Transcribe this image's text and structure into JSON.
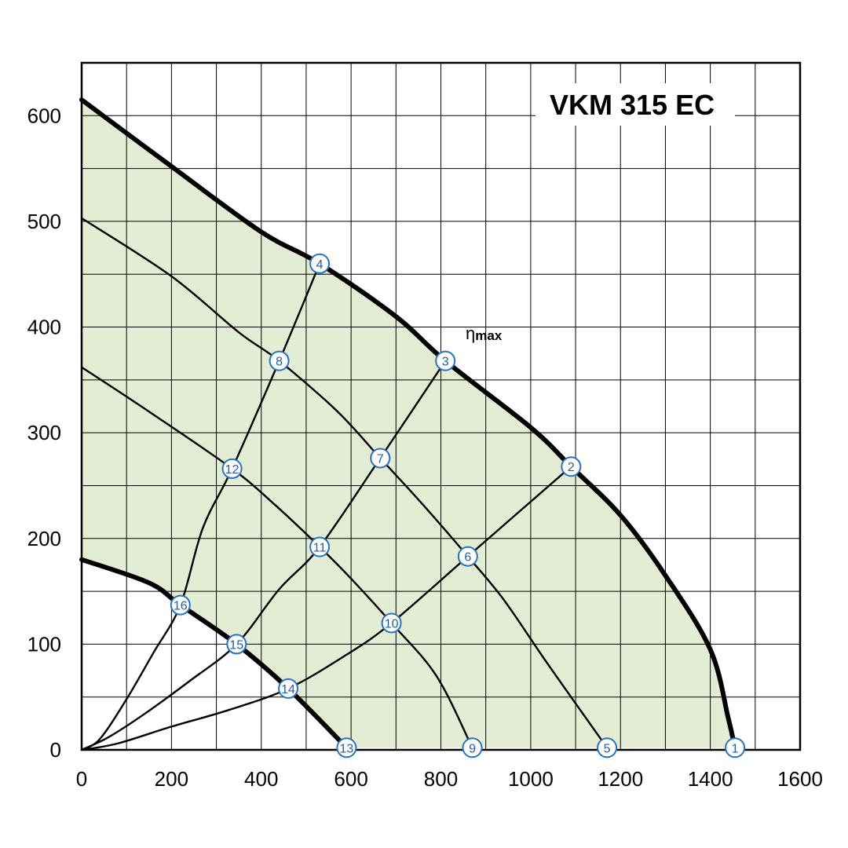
{
  "chart_data": {
    "type": "line",
    "title": "VKM 315 EC",
    "annotation": "ηmax",
    "xlim": [
      0,
      1600
    ],
    "ylim": [
      0,
      650
    ],
    "x_ticks": [
      0,
      200,
      400,
      600,
      800,
      1000,
      1200,
      1400,
      1600
    ],
    "y_ticks": [
      0,
      100,
      200,
      300,
      400,
      500,
      600
    ],
    "grid": true,
    "colors": {
      "operating_area": "#e2edd4",
      "marker_stroke": "#2a72c0",
      "curve": "#000000"
    },
    "operating_area_boundary": [
      [
        0,
        615
      ],
      [
        200,
        552
      ],
      [
        400,
        490
      ],
      [
        530,
        460
      ],
      [
        700,
        410
      ],
      [
        810,
        368
      ],
      [
        1000,
        305
      ],
      [
        1090,
        268
      ],
      [
        1200,
        222
      ],
      [
        1300,
        165
      ],
      [
        1400,
        95
      ],
      [
        1440,
        30
      ],
      [
        1455,
        2
      ],
      [
        590,
        2
      ],
      [
        460,
        58
      ],
      [
        345,
        100
      ],
      [
        220,
        137
      ],
      [
        150,
        158
      ],
      [
        0,
        180
      ]
    ],
    "fan_curves": [
      {
        "points": [
          [
            0,
            615
          ],
          [
            200,
            552
          ],
          [
            400,
            490
          ],
          [
            530,
            460
          ],
          [
            700,
            410
          ],
          [
            810,
            368
          ],
          [
            1000,
            305
          ],
          [
            1090,
            268
          ],
          [
            1200,
            222
          ],
          [
            1300,
            165
          ],
          [
            1400,
            95
          ],
          [
            1440,
            30
          ],
          [
            1455,
            2
          ]
        ],
        "bold": true
      },
      {
        "points": [
          [
            0,
            503
          ],
          [
            200,
            448
          ],
          [
            350,
            395
          ],
          [
            440,
            368
          ],
          [
            570,
            320
          ],
          [
            665,
            276
          ],
          [
            760,
            232
          ],
          [
            860,
            183
          ],
          [
            940,
            142
          ],
          [
            1040,
            80
          ],
          [
            1170,
            2
          ]
        ],
        "bold": false
      },
      {
        "points": [
          [
            0,
            362
          ],
          [
            150,
            320
          ],
          [
            335,
            266
          ],
          [
            430,
            232
          ],
          [
            530,
            192
          ],
          [
            600,
            162
          ],
          [
            690,
            120
          ],
          [
            790,
            70
          ],
          [
            870,
            2
          ]
        ],
        "bold": false
      },
      {
        "points": [
          [
            0,
            180
          ],
          [
            150,
            158
          ],
          [
            220,
            137
          ],
          [
            345,
            100
          ],
          [
            460,
            58
          ],
          [
            590,
            2
          ]
        ],
        "bold": true
      }
    ],
    "system_curves": [
      {
        "points": [
          [
            0,
            0
          ],
          [
            40,
            10
          ],
          [
            100,
            48
          ],
          [
            160,
            92
          ],
          [
            220,
            137
          ],
          [
            270,
            210
          ],
          [
            335,
            266
          ],
          [
            440,
            368
          ],
          [
            530,
            460
          ]
        ]
      },
      {
        "points": [
          [
            0,
            0
          ],
          [
            60,
            12
          ],
          [
            140,
            34
          ],
          [
            240,
            65
          ],
          [
            345,
            100
          ],
          [
            440,
            152
          ],
          [
            530,
            192
          ],
          [
            665,
            276
          ],
          [
            810,
            368
          ]
        ]
      },
      {
        "points": [
          [
            0,
            0
          ],
          [
            80,
            6
          ],
          [
            200,
            22
          ],
          [
            330,
            38
          ],
          [
            460,
            58
          ],
          [
            590,
            90
          ],
          [
            690,
            120
          ],
          [
            860,
            183
          ],
          [
            1090,
            268
          ]
        ]
      }
    ],
    "points": [
      {
        "label": "1",
        "x": 1455,
        "y": 2
      },
      {
        "label": "2",
        "x": 1090,
        "y": 268
      },
      {
        "label": "3",
        "x": 810,
        "y": 368
      },
      {
        "label": "4",
        "x": 530,
        "y": 460
      },
      {
        "label": "5",
        "x": 1170,
        "y": 2
      },
      {
        "label": "6",
        "x": 860,
        "y": 183
      },
      {
        "label": "7",
        "x": 665,
        "y": 276
      },
      {
        "label": "8",
        "x": 440,
        "y": 368
      },
      {
        "label": "9",
        "x": 870,
        "y": 2
      },
      {
        "label": "10",
        "x": 690,
        "y": 120
      },
      {
        "label": "11",
        "x": 530,
        "y": 192
      },
      {
        "label": "12",
        "x": 335,
        "y": 266
      },
      {
        "label": "13",
        "x": 590,
        "y": 2
      },
      {
        "label": "14",
        "x": 460,
        "y": 58
      },
      {
        "label": "15",
        "x": 345,
        "y": 100
      },
      {
        "label": "16",
        "x": 220,
        "y": 137
      }
    ]
  }
}
